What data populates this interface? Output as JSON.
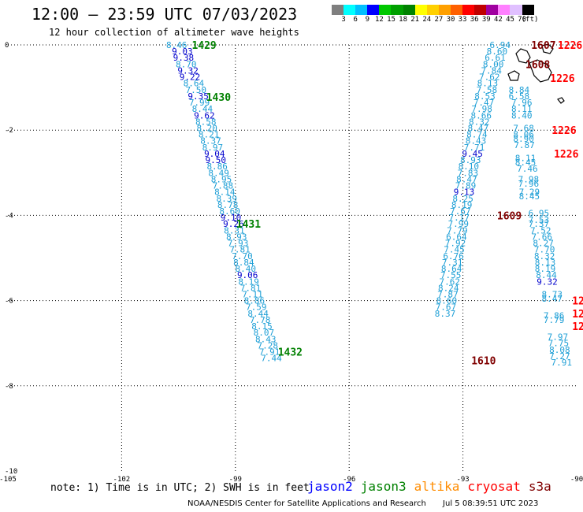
{
  "header": {
    "title": "12:00 — 23:59 UTC 07/03/2023",
    "subtitle": "12 hour collection of altimeter wave heights"
  },
  "legend": {
    "unit": "(ft)",
    "colors": [
      "#7f7f7f",
      "#00ffff",
      "#00bfff",
      "#0000ff",
      "#00c800",
      "#00a000",
      "#008200",
      "#ffff00",
      "#ffd000",
      "#ffa000",
      "#ff6000",
      "#ff0000",
      "#c00000",
      "#a000a0",
      "#ff80ff",
      "#e0c0ff",
      "#000000"
    ],
    "ticks": [
      "3",
      "6",
      "9",
      "12",
      "15",
      "18",
      "21",
      "24",
      "27",
      "30",
      "33",
      "36",
      "39",
      "42",
      "45",
      "70"
    ]
  },
  "axes": {
    "x_labels": [
      "-105",
      "-102",
      "-99",
      "-96",
      "-93",
      "-90"
    ],
    "y_labels": [
      "0",
      "-2",
      "-4",
      "-6",
      "-8",
      "-10"
    ]
  },
  "track_labels": [
    {
      "id": "1429",
      "color": "#008000",
      "lon": -100.15,
      "lat": 0.0
    },
    {
      "id": "1430",
      "color": "#008000",
      "lon": -99.77,
      "lat": -1.22
    },
    {
      "id": "1431",
      "color": "#008000",
      "lon": -98.98,
      "lat": -4.2
    },
    {
      "id": "1432",
      "color": "#008000",
      "lon": -97.88,
      "lat": -7.2
    },
    {
      "id": "1609",
      "color": "#800000",
      "lon": -92.1,
      "lat": -4.0
    },
    {
      "id": "1610",
      "color": "#800000",
      "lon": -92.78,
      "lat": -7.4
    },
    {
      "id": "1607",
      "color": "#800000",
      "lon": -91.2,
      "lat": 0.0
    },
    {
      "id": "1608",
      "color": "#800000",
      "lon": -91.35,
      "lat": -0.45
    },
    {
      "id": "1226",
      "color": "#ff0000",
      "lon": -90.5,
      "lat": 0.0
    },
    {
      "id": "1226",
      "color": "#ff0000",
      "lon": -90.7,
      "lat": -0.78
    },
    {
      "id": "1226",
      "color": "#ff0000",
      "lon": -90.66,
      "lat": -2.0
    },
    {
      "id": "1226",
      "color": "#ff0000",
      "lon": -90.6,
      "lat": -2.55
    },
    {
      "id": "12",
      "color": "#ff0000",
      "lon": -90.12,
      "lat": -6.0
    },
    {
      "id": "12",
      "color": "#ff0000",
      "lon": -90.12,
      "lat": -6.3
    },
    {
      "id": "12",
      "color": "#ff0000",
      "lon": -90.12,
      "lat": -6.6
    }
  ],
  "swh_tracks": [
    {
      "name": "jason3",
      "points": [
        [
          "8.46",
          -100.55,
          0.0
        ],
        [
          "9.03",
          -100.4,
          -0.15
        ],
        [
          "9.38",
          -100.37,
          -0.3
        ],
        [
          "8.70",
          -100.3,
          -0.45
        ],
        [
          "9.32",
          -100.25,
          -0.6
        ],
        [
          "9.22",
          -100.2,
          -0.75
        ],
        [
          "8.64",
          -100.1,
          -0.9
        ],
        [
          "7.50",
          -100.04,
          -1.05
        ],
        [
          "9.35",
          -99.98,
          -1.2
        ],
        [
          "7.99",
          -99.95,
          -1.35
        ],
        [
          "8.44",
          -99.87,
          -1.5
        ],
        [
          "9.62",
          -99.82,
          -1.65
        ],
        [
          "8.58",
          -99.78,
          -1.8
        ],
        [
          "8.20",
          -99.75,
          -1.95
        ],
        [
          "8.21",
          -99.7,
          -2.1
        ],
        [
          "8.37",
          -99.65,
          -2.25
        ],
        [
          "8.97",
          -99.6,
          -2.4
        ],
        [
          "9.04",
          -99.55,
          -2.55
        ],
        [
          "9.50",
          -99.52,
          -2.7
        ],
        [
          "8.86",
          -99.48,
          -2.85
        ],
        [
          "8.49",
          -99.44,
          -3.0
        ],
        [
          "8.95",
          -99.37,
          -3.15
        ],
        [
          "7.88",
          -99.33,
          -3.3
        ],
        [
          "8.14",
          -99.28,
          -3.45
        ],
        [
          "8.39",
          -99.23,
          -3.6
        ],
        [
          "8.78",
          -99.2,
          -3.75
        ],
        [
          "8.60",
          -99.15,
          -3.9
        ],
        [
          "9.10",
          -99.12,
          -4.05
        ],
        [
          "9.26",
          -99.05,
          -4.2
        ],
        [
          "8.31",
          -99.03,
          -4.35
        ],
        [
          "8.93",
          -98.97,
          -4.5
        ],
        [
          "7.93",
          -98.93,
          -4.65
        ],
        [
          "7.81",
          -98.88,
          -4.8
        ],
        [
          "7.70",
          -98.82,
          -4.95
        ],
        [
          "8.84",
          -98.78,
          -5.1
        ],
        [
          "8.40",
          -98.73,
          -5.25
        ],
        [
          "9.06",
          -98.68,
          -5.4
        ],
        [
          "8.19",
          -98.65,
          -5.55
        ],
        [
          "7.81",
          -98.6,
          -5.7
        ],
        [
          "7.11",
          -98.55,
          -5.85
        ],
        [
          "8.86",
          -98.5,
          -6.0
        ],
        [
          "7.59",
          -98.45,
          -6.15
        ],
        [
          "8.44",
          -98.4,
          -6.3
        ],
        [
          "7.78",
          -98.35,
          -6.45
        ],
        [
          "8.15",
          -98.3,
          -6.6
        ],
        [
          "8.07",
          -98.25,
          -6.75
        ],
        [
          "8.43",
          -98.2,
          -6.9
        ],
        [
          "7.28",
          -98.15,
          -7.05
        ],
        [
          "7.91",
          -98.1,
          -7.2
        ],
        [
          "7.44",
          -98.05,
          -7.35
        ]
      ]
    },
    {
      "name": "cryosat",
      "points": [
        [
          "6.94",
          -92.02,
          0.0
        ],
        [
          "8.60",
          -92.1,
          -0.15
        ],
        [
          "6.61",
          -92.15,
          -0.3
        ],
        [
          "8.00",
          -92.2,
          -0.45
        ],
        [
          "7.84",
          -92.25,
          -0.6
        ],
        [
          "7.62",
          -92.3,
          -0.75
        ],
        [
          "8.13",
          -92.35,
          -0.9
        ],
        [
          "7.58",
          -92.37,
          -1.05
        ],
        [
          "8.53",
          -92.42,
          -1.2
        ],
        [
          "7.47",
          -92.45,
          -1.35
        ],
        [
          "7.98",
          -92.5,
          -1.5
        ],
        [
          "8.66",
          -92.52,
          -1.65
        ],
        [
          "8.32",
          -92.57,
          -1.8
        ],
        [
          "8.47",
          -92.6,
          -1.95
        ],
        [
          "8.74",
          -92.63,
          -2.1
        ],
        [
          "8.43",
          -92.66,
          -2.25
        ],
        [
          "7.71",
          -92.7,
          -2.4
        ],
        [
          "9.45",
          -92.75,
          -2.55
        ],
        [
          "8.93",
          -92.8,
          -2.7
        ],
        [
          "8.10",
          -92.85,
          -2.85
        ],
        [
          "7.83",
          -92.87,
          -3.0
        ],
        [
          "8.47",
          -92.9,
          -3.15
        ],
        [
          "7.89",
          -92.93,
          -3.3
        ],
        [
          "9.13",
          -92.97,
          -3.45
        ],
        [
          "8.25",
          -93.0,
          -3.6
        ],
        [
          "8.19",
          -93.03,
          -3.75
        ],
        [
          "7.67",
          -93.07,
          -3.9
        ],
        [
          "7.17",
          -93.1,
          -4.05
        ],
        [
          "7.99",
          -93.12,
          -4.2
        ],
        [
          "7.79",
          -93.15,
          -4.35
        ],
        [
          "6.64",
          -93.17,
          -4.5
        ],
        [
          "7.92",
          -93.2,
          -4.65
        ],
        [
          "7.45",
          -93.23,
          -4.8
        ],
        [
          "6.76",
          -93.25,
          -4.95
        ],
        [
          "7.31",
          -93.28,
          -5.1
        ],
        [
          "8.64",
          -93.3,
          -5.25
        ],
        [
          "7.55",
          -93.32,
          -5.4
        ],
        [
          "7.62",
          -93.35,
          -5.55
        ],
        [
          "8.24",
          -93.38,
          -5.7
        ],
        [
          "7.87",
          -93.4,
          -5.85
        ],
        [
          "8.60",
          -93.43,
          -6.0
        ],
        [
          "7.67",
          -93.45,
          -6.15
        ],
        [
          "8.37",
          -93.47,
          -6.3
        ]
      ]
    },
    {
      "name": "cryosat-east",
      "points": [
        [
          "8.84",
          -91.52,
          -1.05
        ],
        [
          "6.58",
          -91.52,
          -1.2
        ],
        [
          "7.96",
          -91.45,
          -1.35
        ],
        [
          "8.11",
          -91.45,
          -1.5
        ],
        [
          "8.40",
          -91.45,
          -1.65
        ],
        [
          "7.68",
          -91.4,
          -1.95
        ],
        [
          "8.06",
          -91.4,
          -2.1
        ],
        [
          "8.90",
          -91.4,
          -2.2
        ],
        [
          "7.87",
          -91.38,
          -2.35
        ],
        [
          "8.11",
          -91.35,
          -2.65
        ],
        [
          "8.45",
          -91.35,
          -2.75
        ],
        [
          "7.46",
          -91.3,
          -2.9
        ],
        [
          "7.98",
          -91.27,
          -3.15
        ],
        [
          "7.96",
          -91.27,
          -3.25
        ],
        [
          "7.29",
          -91.25,
          -3.45
        ],
        [
          "8.45",
          -91.25,
          -3.55
        ],
        [
          "6.95",
          -91.0,
          -3.95
        ],
        [
          "7.53",
          -91.0,
          -4.1
        ],
        [
          "7.37",
          -91.0,
          -4.2
        ],
        [
          "7.52",
          -90.95,
          -4.35
        ],
        [
          "7.66",
          -90.92,
          -4.5
        ],
        [
          "8.27",
          -90.88,
          -4.65
        ],
        [
          "7.70",
          -90.85,
          -4.8
        ],
        [
          "8.32",
          -90.85,
          -4.95
        ],
        [
          "8.13",
          -90.83,
          -5.1
        ],
        [
          "8.19",
          -90.83,
          -5.25
        ],
        [
          "8.44",
          -90.8,
          -5.4
        ],
        [
          "9.32",
          -90.78,
          -5.55
        ],
        [
          "8.73",
          -90.65,
          -5.85
        ],
        [
          "8.47",
          -90.65,
          -5.95
        ],
        [
          "7.86",
          -90.6,
          -6.35
        ],
        [
          "7.79",
          -90.6,
          -6.45
        ],
        [
          "7.97",
          -90.5,
          -6.85
        ],
        [
          "7.75",
          -90.48,
          -7.0
        ],
        [
          "8.08",
          -90.45,
          -7.15
        ],
        [
          "7.27",
          -90.45,
          -7.3
        ],
        [
          "7.91",
          -90.4,
          -7.45
        ]
      ]
    }
  ],
  "note": "note: 1) Time is in UTC; 2) SWH is in feet",
  "satellites": [
    {
      "name": "jason2",
      "color": "#0000ff"
    },
    {
      "name": "jason3",
      "color": "#008000"
    },
    {
      "name": "altika",
      "color": "#ff8c00"
    },
    {
      "name": "cryosat",
      "color": "#ff0000"
    },
    {
      "name": "s3a",
      "color": "#800000"
    }
  ],
  "footer": {
    "org": "NOAA/NESDIS Center for Satellite Applications and Research",
    "timestamp": "Jul 5 08:39:51 UTC 2023"
  }
}
